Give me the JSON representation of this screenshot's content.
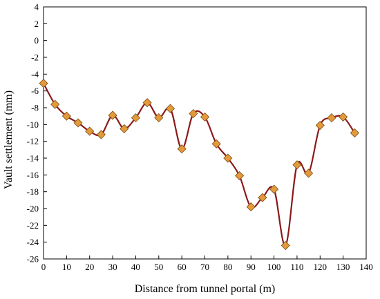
{
  "chart_data": {
    "type": "line",
    "title": "",
    "xlabel": "Distance from tunnel portal (m)",
    "ylabel": "Vault settlement (mm)",
    "xlim": [
      0,
      140
    ],
    "ylim": [
      -26,
      4
    ],
    "xticks": [
      0,
      10,
      20,
      30,
      40,
      50,
      60,
      70,
      80,
      90,
      100,
      110,
      120,
      130,
      140
    ],
    "yticks": [
      4,
      2,
      0,
      -2,
      -4,
      -6,
      -8,
      -10,
      -12,
      -14,
      -16,
      -18,
      -20,
      -22,
      -24,
      -26
    ],
    "grid": false,
    "legend": "none",
    "series": [
      {
        "x": [
          0,
          5,
          10,
          15,
          20,
          25,
          30,
          35,
          40,
          45,
          50,
          55,
          60,
          65,
          70,
          75,
          80,
          85,
          90,
          95,
          100,
          105,
          110,
          115,
          120,
          125,
          130,
          135
        ],
        "y": [
          -5.1,
          -7.6,
          -9.0,
          -9.8,
          -10.8,
          -11.2,
          -8.9,
          -10.5,
          -9.2,
          -7.4,
          -9.2,
          -8.1,
          -12.9,
          -8.7,
          -9.1,
          -12.3,
          -14.0,
          -16.1,
          -19.8,
          -18.7,
          -17.7,
          -24.4,
          -14.8,
          -15.8,
          -10.1,
          -9.2,
          -9.1,
          -11.0
        ]
      }
    ],
    "colors": {
      "line": "#8b1a1a",
      "marker_fill": "#e39a3a",
      "marker_stroke": "#7a4a12",
      "axis": "#000000"
    }
  }
}
